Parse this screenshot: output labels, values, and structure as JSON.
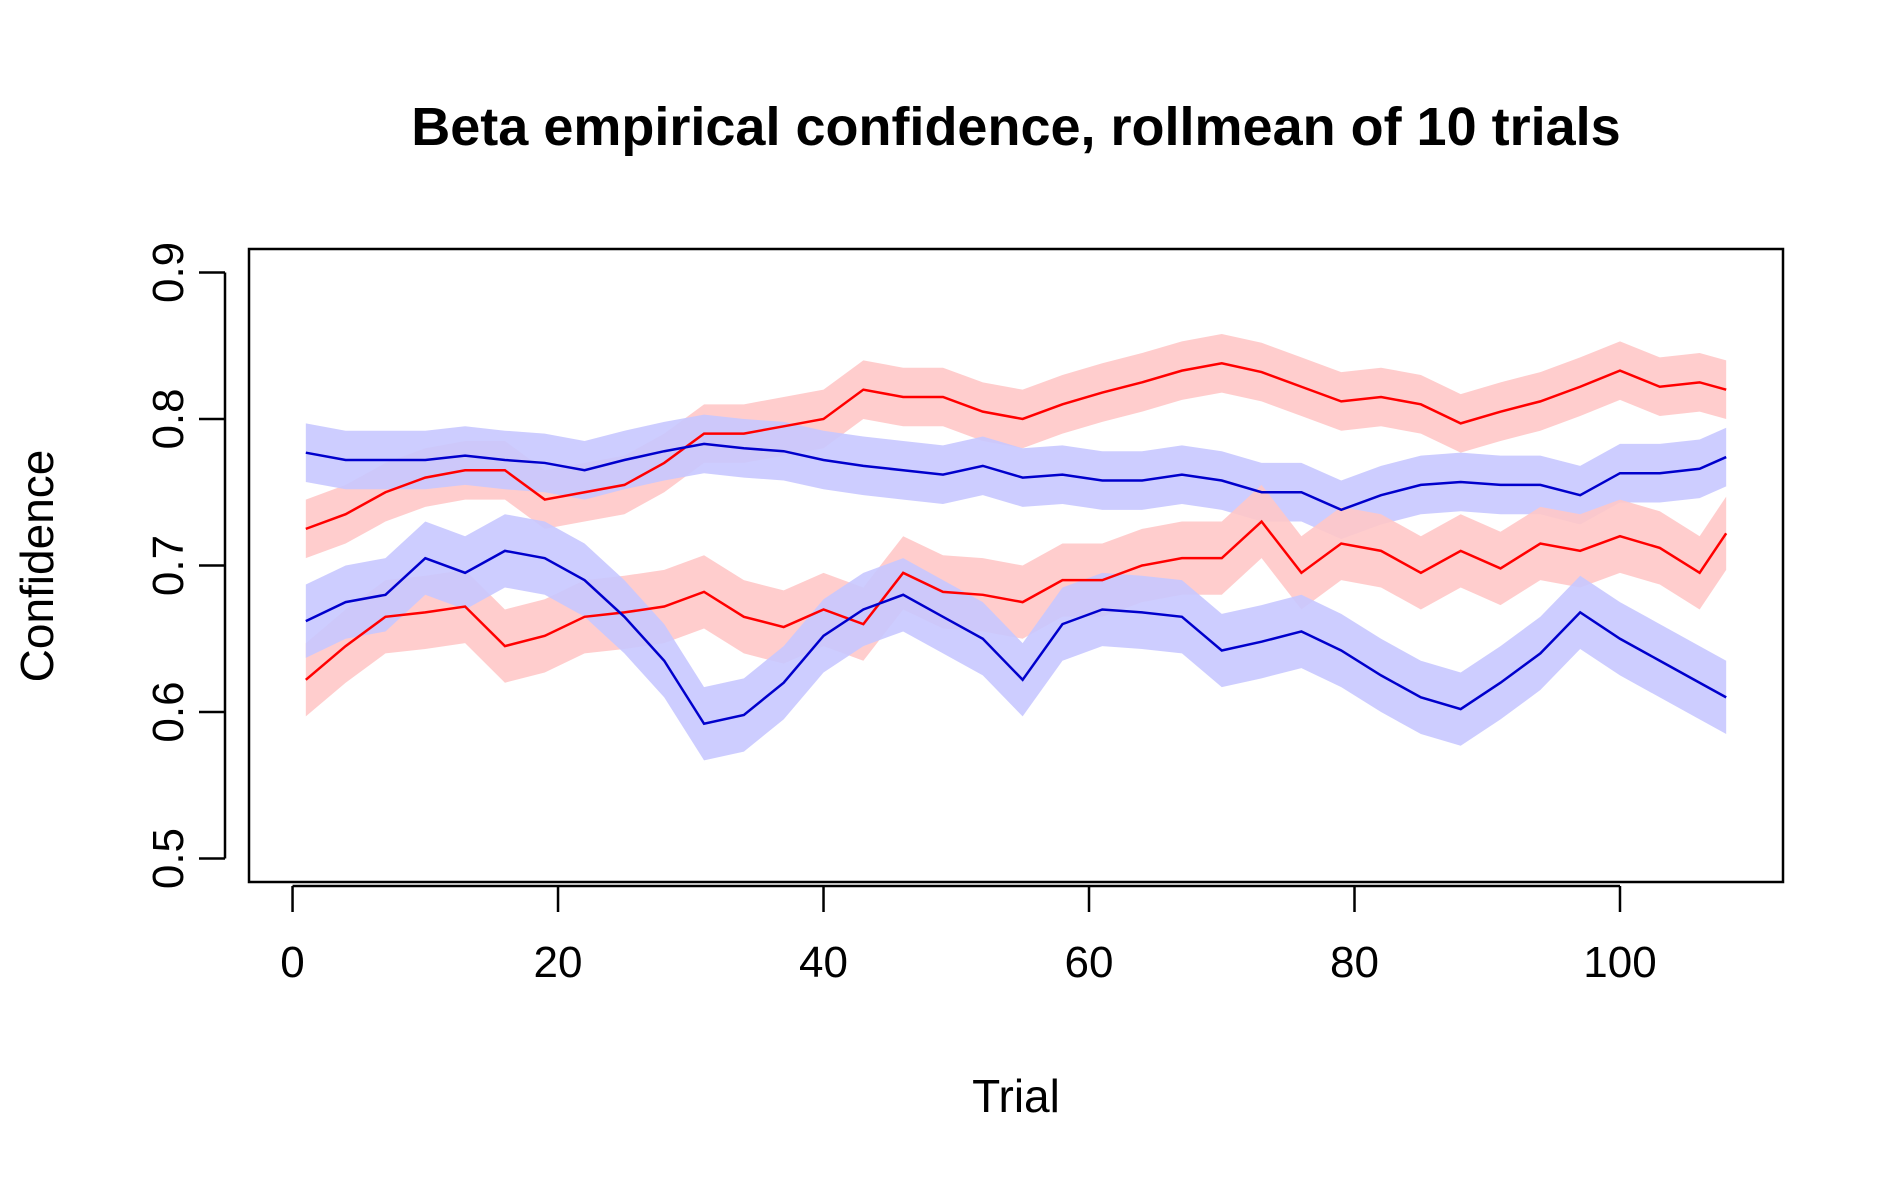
{
  "chart_data": {
    "type": "line",
    "title": "Beta empirical confidence, rollmean of  10 trials",
    "x_label": "Trial",
    "y_label": "Confidence",
    "x": [
      1,
      4,
      7,
      10,
      13,
      16,
      19,
      22,
      25,
      28,
      31,
      34,
      37,
      40,
      43,
      46,
      49,
      52,
      55,
      58,
      61,
      64,
      67,
      70,
      73,
      76,
      79,
      82,
      85,
      88,
      91,
      94,
      97,
      100,
      103,
      106,
      108
    ],
    "series": [
      {
        "color": "#ff0000",
        "band_color": "#ffc8c8",
        "spread": 0.02,
        "values": [
          0.725,
          0.735,
          0.75,
          0.76,
          0.765,
          0.765,
          0.745,
          0.75,
          0.755,
          0.77,
          0.79,
          0.79,
          0.795,
          0.8,
          0.82,
          0.815,
          0.815,
          0.805,
          0.8,
          0.81,
          0.818,
          0.825,
          0.833,
          0.838,
          0.832,
          0.822,
          0.812,
          0.815,
          0.81,
          0.797,
          0.805,
          0.812,
          0.822,
          0.833,
          0.822,
          0.825,
          0.82
        ]
      },
      {
        "color": "#0000cc",
        "band_color": "#c8c8ff",
        "spread": 0.02,
        "values": [
          0.777,
          0.772,
          0.772,
          0.772,
          0.775,
          0.772,
          0.77,
          0.765,
          0.772,
          0.778,
          0.783,
          0.78,
          0.778,
          0.772,
          0.768,
          0.765,
          0.762,
          0.768,
          0.76,
          0.762,
          0.758,
          0.758,
          0.762,
          0.758,
          0.75,
          0.75,
          0.738,
          0.748,
          0.755,
          0.757,
          0.755,
          0.755,
          0.748,
          0.763,
          0.763,
          0.766,
          0.774
        ]
      },
      {
        "color": "#ff0000",
        "band_color": "#ffc8c8",
        "spread": 0.025,
        "values": [
          0.622,
          0.645,
          0.665,
          0.668,
          0.672,
          0.645,
          0.652,
          0.665,
          0.668,
          0.672,
          0.682,
          0.665,
          0.658,
          0.67,
          0.66,
          0.695,
          0.682,
          0.68,
          0.675,
          0.69,
          0.69,
          0.7,
          0.705,
          0.705,
          0.73,
          0.695,
          0.715,
          0.71,
          0.695,
          0.71,
          0.698,
          0.715,
          0.71,
          0.72,
          0.712,
          0.695,
          0.722
        ]
      },
      {
        "color": "#0000cc",
        "band_color": "#c8c8ff",
        "spread": 0.025,
        "values": [
          0.662,
          0.675,
          0.68,
          0.705,
          0.695,
          0.71,
          0.705,
          0.69,
          0.665,
          0.635,
          0.592,
          0.598,
          0.62,
          0.652,
          0.67,
          0.68,
          0.665,
          0.65,
          0.622,
          0.66,
          0.67,
          0.668,
          0.665,
          0.642,
          0.648,
          0.655,
          0.642,
          0.625,
          0.61,
          0.602,
          0.62,
          0.64,
          0.668,
          0.65,
          0.635,
          0.62,
          0.61
        ]
      }
    ],
    "xlim": [
      -3.28,
      112.28
    ],
    "ylim": [
      0.484,
      0.916
    ],
    "xticks": [
      0,
      20,
      40,
      60,
      80,
      100
    ],
    "yticks": [
      0.5,
      0.6,
      0.7,
      0.8,
      0.9
    ]
  }
}
